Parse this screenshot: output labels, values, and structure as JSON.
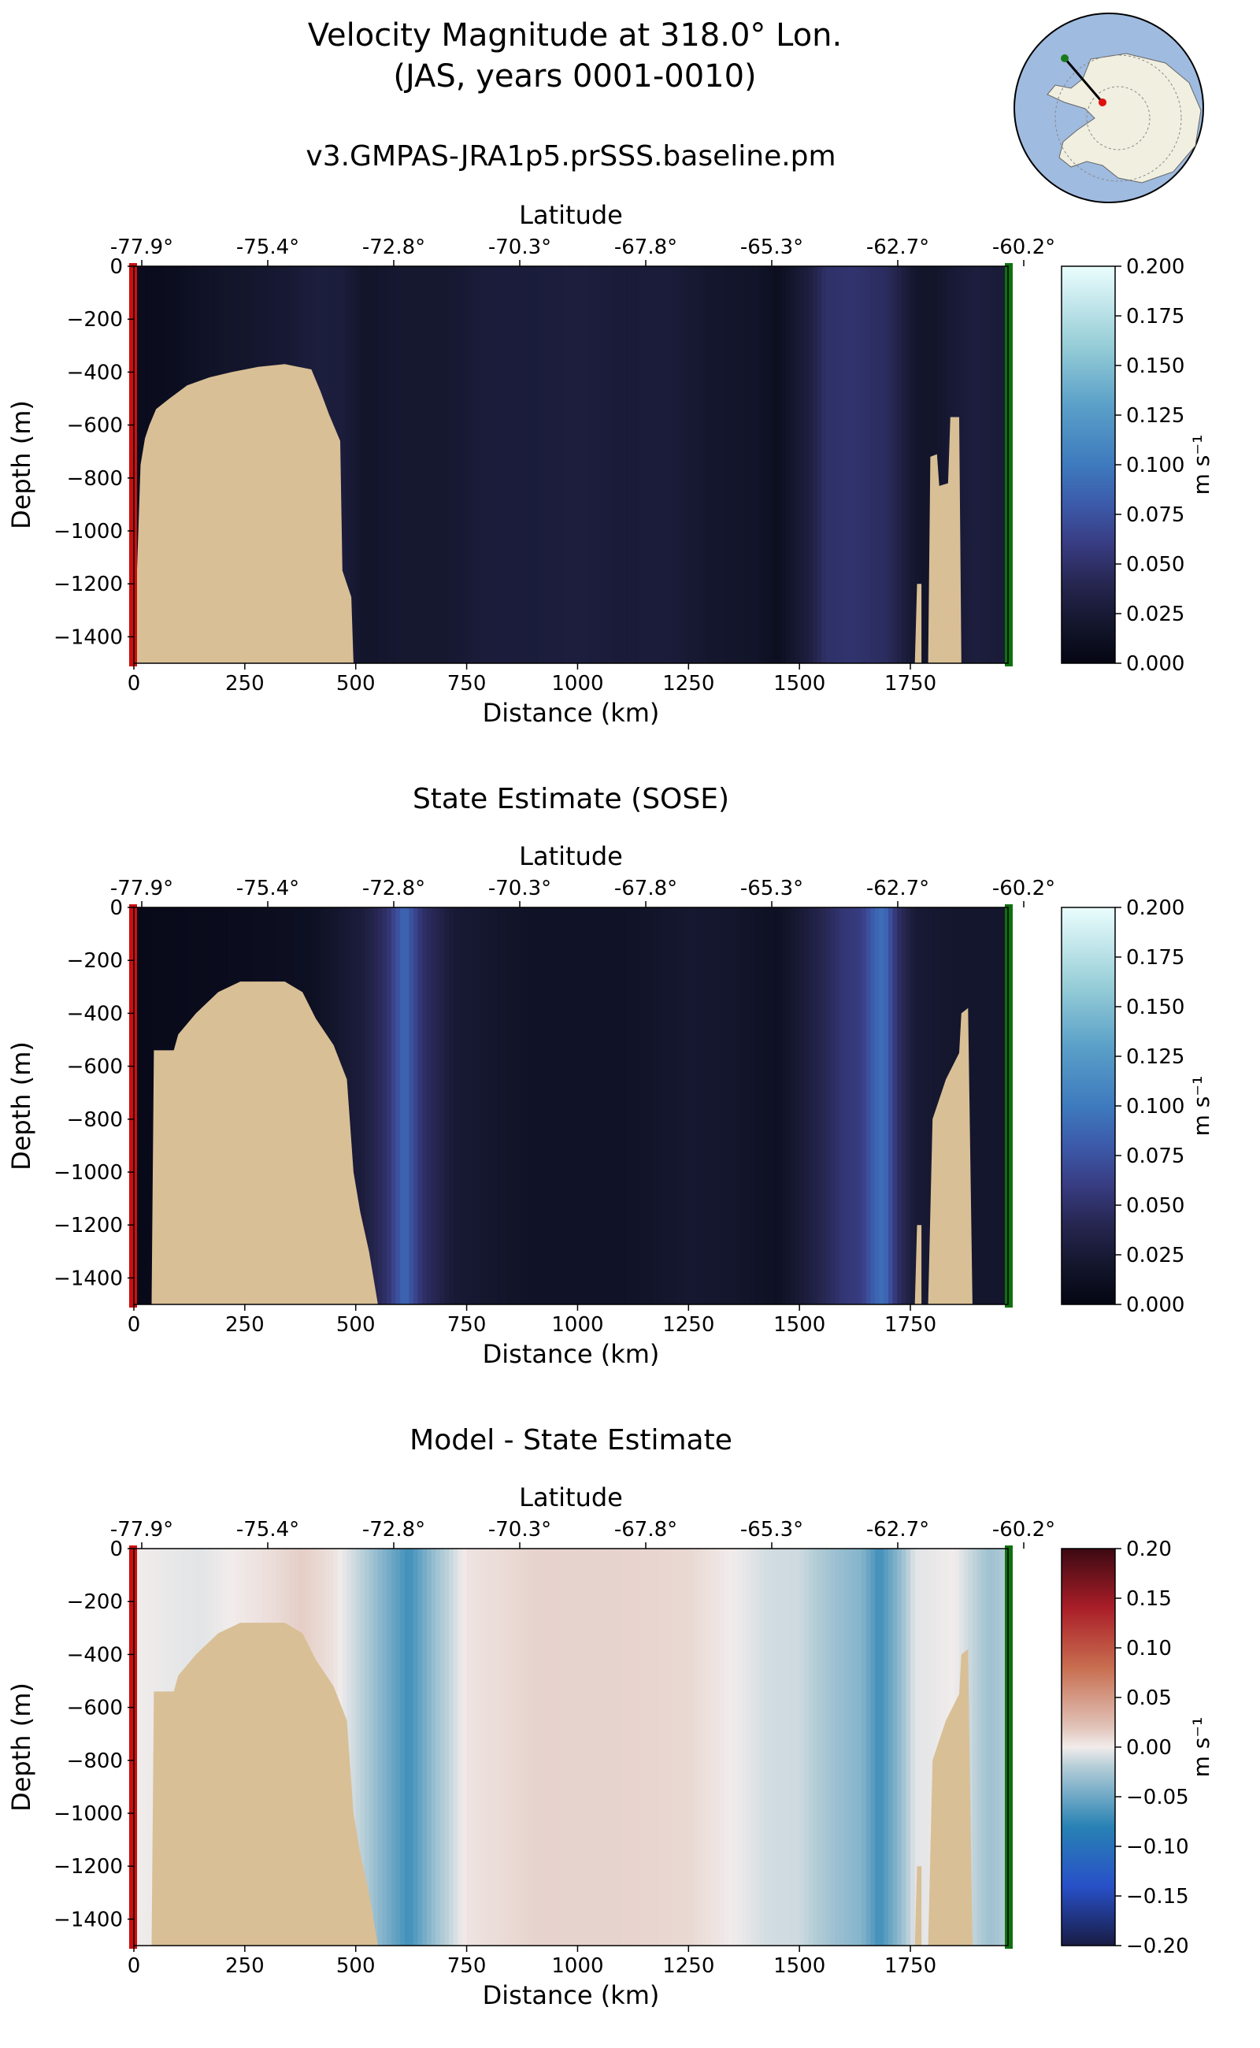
{
  "figure": {
    "title_line1": "Velocity Magnitude at 318.0° Lon.",
    "title_line2": "(JAS, years 0001-0010)"
  },
  "colors": {
    "bathymetry": "#d9bf96",
    "start_marker": "#cc1010",
    "end_marker": "#107010",
    "ocean": "#9fbbe0",
    "land": "#f0efe0",
    "track_start_dot": "#1a7a1a",
    "track_end_dot": "#e01010"
  },
  "chart_data": [
    {
      "type": "heatmap",
      "title": "v3.GMPAS-JRA1p5.prSSS.baseline.pm",
      "xlabel": "Distance (km)",
      "ylabel": "Depth (m)",
      "x2label": "Latitude",
      "xlim": [
        0,
        1970
      ],
      "ylim": [
        -1500,
        0
      ],
      "x_ticks": [
        0,
        250,
        500,
        750,
        1000,
        1250,
        1500,
        1750
      ],
      "y_ticks": [
        0,
        -200,
        -400,
        -600,
        -800,
        -1000,
        -1200,
        -1400
      ],
      "lat_tick_labels": [
        "-77.9°",
        "-75.4°",
        "-72.8°",
        "-70.3°",
        "-67.8°",
        "-65.3°",
        "-62.7°",
        "-60.2°"
      ],
      "colorbar": {
        "label": "m s⁻¹",
        "cmap": "ice",
        "range": [
          0,
          0.2
        ],
        "ticks": [
          "0.000",
          "0.025",
          "0.050",
          "0.075",
          "0.100",
          "0.125",
          "0.150",
          "0.175",
          "0.200"
        ]
      },
      "speed_profile_km": [
        [
          0,
          0.008
        ],
        [
          100,
          0.01
        ],
        [
          200,
          0.018
        ],
        [
          260,
          0.02
        ],
        [
          350,
          0.024
        ],
        [
          420,
          0.03
        ],
        [
          470,
          0.028
        ],
        [
          520,
          0.018
        ],
        [
          600,
          0.022
        ],
        [
          700,
          0.022
        ],
        [
          800,
          0.028
        ],
        [
          900,
          0.028
        ],
        [
          1000,
          0.03
        ],
        [
          1100,
          0.026
        ],
        [
          1200,
          0.028
        ],
        [
          1300,
          0.02
        ],
        [
          1400,
          0.018
        ],
        [
          1450,
          0.01
        ],
        [
          1520,
          0.03
        ],
        [
          1560,
          0.05
        ],
        [
          1620,
          0.052
        ],
        [
          1700,
          0.045
        ],
        [
          1760,
          0.02
        ],
        [
          1800,
          0.018
        ],
        [
          1850,
          0.025
        ],
        [
          1900,
          0.03
        ],
        [
          1970,
          0.025
        ]
      ],
      "bathymetry_depth_m": [
        [
          0,
          -1500
        ],
        [
          15,
          -750
        ],
        [
          25,
          -650
        ],
        [
          35,
          -600
        ],
        [
          50,
          -540
        ],
        [
          80,
          -500
        ],
        [
          120,
          -450
        ],
        [
          170,
          -420
        ],
        [
          220,
          -400
        ],
        [
          280,
          -380
        ],
        [
          340,
          -370
        ],
        [
          400,
          -390
        ],
        [
          420,
          -470
        ],
        [
          440,
          -560
        ],
        [
          465,
          -660
        ],
        [
          470,
          -1150
        ],
        [
          490,
          -1250
        ],
        [
          495,
          -1500
        ],
        [
          1760,
          -1500
        ],
        [
          1765,
          -1200
        ],
        [
          1775,
          -1200
        ],
        [
          1775,
          -1500
        ],
        [
          1790,
          -1500
        ],
        [
          1795,
          -720
        ],
        [
          1810,
          -710
        ],
        [
          1815,
          -830
        ],
        [
          1835,
          -820
        ],
        [
          1840,
          -570
        ],
        [
          1860,
          -570
        ],
        [
          1865,
          -1500
        ]
      ]
    },
    {
      "type": "heatmap",
      "title": "State Estimate (SOSE)",
      "xlabel": "Distance (km)",
      "ylabel": "Depth (m)",
      "x2label": "Latitude",
      "xlim": [
        0,
        1970
      ],
      "ylim": [
        -1500,
        0
      ],
      "x_ticks": [
        0,
        250,
        500,
        750,
        1000,
        1250,
        1500,
        1750
      ],
      "y_ticks": [
        0,
        -200,
        -400,
        -600,
        -800,
        -1000,
        -1200,
        -1400
      ],
      "lat_tick_labels": [
        "-77.9°",
        "-75.4°",
        "-72.8°",
        "-70.3°",
        "-67.8°",
        "-65.3°",
        "-62.7°",
        "-60.2°"
      ],
      "colorbar": {
        "label": "m s⁻¹",
        "cmap": "ice",
        "range": [
          0,
          0.2
        ],
        "ticks": [
          "0.000",
          "0.025",
          "0.050",
          "0.075",
          "0.100",
          "0.125",
          "0.150",
          "0.175",
          "0.200"
        ]
      },
      "speed_profile_km": [
        [
          0,
          0.005
        ],
        [
          200,
          0.008
        ],
        [
          400,
          0.012
        ],
        [
          520,
          0.03
        ],
        [
          570,
          0.05
        ],
        [
          610,
          0.09
        ],
        [
          650,
          0.05
        ],
        [
          720,
          0.025
        ],
        [
          900,
          0.015
        ],
        [
          1100,
          0.015
        ],
        [
          1250,
          0.022
        ],
        [
          1350,
          0.02
        ],
        [
          1450,
          0.012
        ],
        [
          1520,
          0.03
        ],
        [
          1600,
          0.055
        ],
        [
          1640,
          0.06
        ],
        [
          1670,
          0.085
        ],
        [
          1690,
          0.095
        ],
        [
          1720,
          0.05
        ],
        [
          1760,
          0.025
        ],
        [
          1850,
          0.02
        ],
        [
          1970,
          0.02
        ]
      ],
      "bathymetry_depth_m": [
        [
          0,
          -1500
        ],
        [
          40,
          -1500
        ],
        [
          45,
          -540
        ],
        [
          90,
          -540
        ],
        [
          100,
          -480
        ],
        [
          140,
          -400
        ],
        [
          190,
          -320
        ],
        [
          240,
          -280
        ],
        [
          340,
          -280
        ],
        [
          380,
          -320
        ],
        [
          410,
          -420
        ],
        [
          450,
          -520
        ],
        [
          480,
          -650
        ],
        [
          495,
          -1000
        ],
        [
          510,
          -1150
        ],
        [
          530,
          -1300
        ],
        [
          545,
          -1450
        ],
        [
          550,
          -1500
        ],
        [
          1760,
          -1500
        ],
        [
          1765,
          -1200
        ],
        [
          1775,
          -1200
        ],
        [
          1775,
          -1500
        ],
        [
          1790,
          -1500
        ],
        [
          1800,
          -800
        ],
        [
          1830,
          -650
        ],
        [
          1860,
          -550
        ],
        [
          1865,
          -400
        ],
        [
          1880,
          -380
        ],
        [
          1890,
          -1500
        ]
      ]
    },
    {
      "type": "heatmap",
      "title": "Model - State Estimate",
      "xlabel": "Distance (km)",
      "ylabel": "Depth (m)",
      "x2label": "Latitude",
      "xlim": [
        0,
        1970
      ],
      "ylim": [
        -1500,
        0
      ],
      "x_ticks": [
        0,
        250,
        500,
        750,
        1000,
        1250,
        1500,
        1750
      ],
      "y_ticks": [
        0,
        -200,
        -400,
        -600,
        -800,
        -1000,
        -1200,
        -1400
      ],
      "lat_tick_labels": [
        "-77.9°",
        "-75.4°",
        "-72.8°",
        "-70.3°",
        "-67.8°",
        "-65.3°",
        "-62.7°",
        "-60.2°"
      ],
      "colorbar": {
        "label": "m s⁻¹",
        "cmap": "balance",
        "range": [
          -0.2,
          0.2
        ],
        "ticks": [
          "−0.20",
          "−0.15",
          "−0.10",
          "−0.05",
          "0.00",
          "0.05",
          "0.10",
          "0.15",
          "0.20"
        ]
      },
      "difference_profile_km": [
        [
          0,
          0.0
        ],
        [
          150,
          -0.005
        ],
        [
          300,
          0.006
        ],
        [
          380,
          0.015
        ],
        [
          450,
          0.005
        ],
        [
          520,
          -0.02
        ],
        [
          580,
          -0.05
        ],
        [
          620,
          -0.07
        ],
        [
          680,
          -0.03
        ],
        [
          750,
          0.004
        ],
        [
          900,
          0.012
        ],
        [
          1100,
          0.012
        ],
        [
          1250,
          0.01
        ],
        [
          1350,
          0.0
        ],
        [
          1430,
          -0.01
        ],
        [
          1500,
          -0.012
        ],
        [
          1580,
          -0.03
        ],
        [
          1640,
          -0.04
        ],
        [
          1680,
          -0.07
        ],
        [
          1720,
          -0.04
        ],
        [
          1760,
          -0.005
        ],
        [
          1850,
          0.0
        ],
        [
          1930,
          -0.03
        ],
        [
          1970,
          -0.02
        ]
      ],
      "bathymetry_depth_m": [
        [
          0,
          -1500
        ],
        [
          40,
          -1500
        ],
        [
          45,
          -540
        ],
        [
          90,
          -540
        ],
        [
          100,
          -480
        ],
        [
          140,
          -400
        ],
        [
          190,
          -320
        ],
        [
          240,
          -280
        ],
        [
          340,
          -280
        ],
        [
          380,
          -320
        ],
        [
          410,
          -420
        ],
        [
          450,
          -520
        ],
        [
          480,
          -650
        ],
        [
          495,
          -1000
        ],
        [
          510,
          -1150
        ],
        [
          530,
          -1300
        ],
        [
          545,
          -1450
        ],
        [
          550,
          -1500
        ],
        [
          1760,
          -1500
        ],
        [
          1765,
          -1200
        ],
        [
          1775,
          -1200
        ],
        [
          1775,
          -1500
        ],
        [
          1790,
          -1500
        ],
        [
          1800,
          -800
        ],
        [
          1830,
          -650
        ],
        [
          1860,
          -550
        ],
        [
          1865,
          -400
        ],
        [
          1880,
          -380
        ],
        [
          1890,
          -1500
        ]
      ]
    }
  ]
}
